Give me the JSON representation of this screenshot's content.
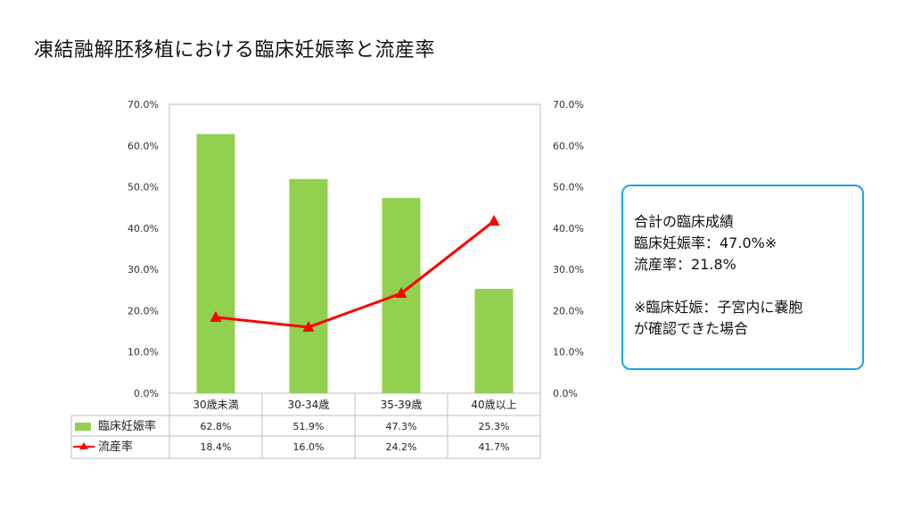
{
  "title": "凍結融解胚移植における臨床妊娠率と流産率",
  "chart_data": {
    "type": "bar",
    "categories": [
      "30歳未満",
      "30-34歳",
      "35-39歳",
      "40歳以上"
    ],
    "series": [
      {
        "name": "臨床妊娠率",
        "type": "bar",
        "values": [
          62.8,
          51.9,
          47.3,
          25.3
        ],
        "labels": [
          "62.8%",
          "51.9%",
          "47.3%",
          "25.3%"
        ],
        "color": "#92d050"
      },
      {
        "name": "流産率",
        "type": "line",
        "values": [
          18.4,
          16.0,
          24.2,
          41.7
        ],
        "labels": [
          "18.4%",
          "16.0%",
          "24.2%",
          "41.7%"
        ],
        "color": "#ff0000"
      }
    ],
    "ylim": [
      0,
      70
    ],
    "y_ticks": [
      "0.0%",
      "10.0%",
      "20.0%",
      "30.0%",
      "40.0%",
      "50.0%",
      "60.0%",
      "70.0%"
    ],
    "grid": false,
    "data_table": true
  },
  "note": {
    "line1": "合計の臨床成績",
    "line2": "臨床妊娠率：47.0%※",
    "line3": "流産率：21.8%",
    "line4": "※臨床妊娠：子宮内に嚢胞",
    "line5": "が確認できた場合"
  }
}
